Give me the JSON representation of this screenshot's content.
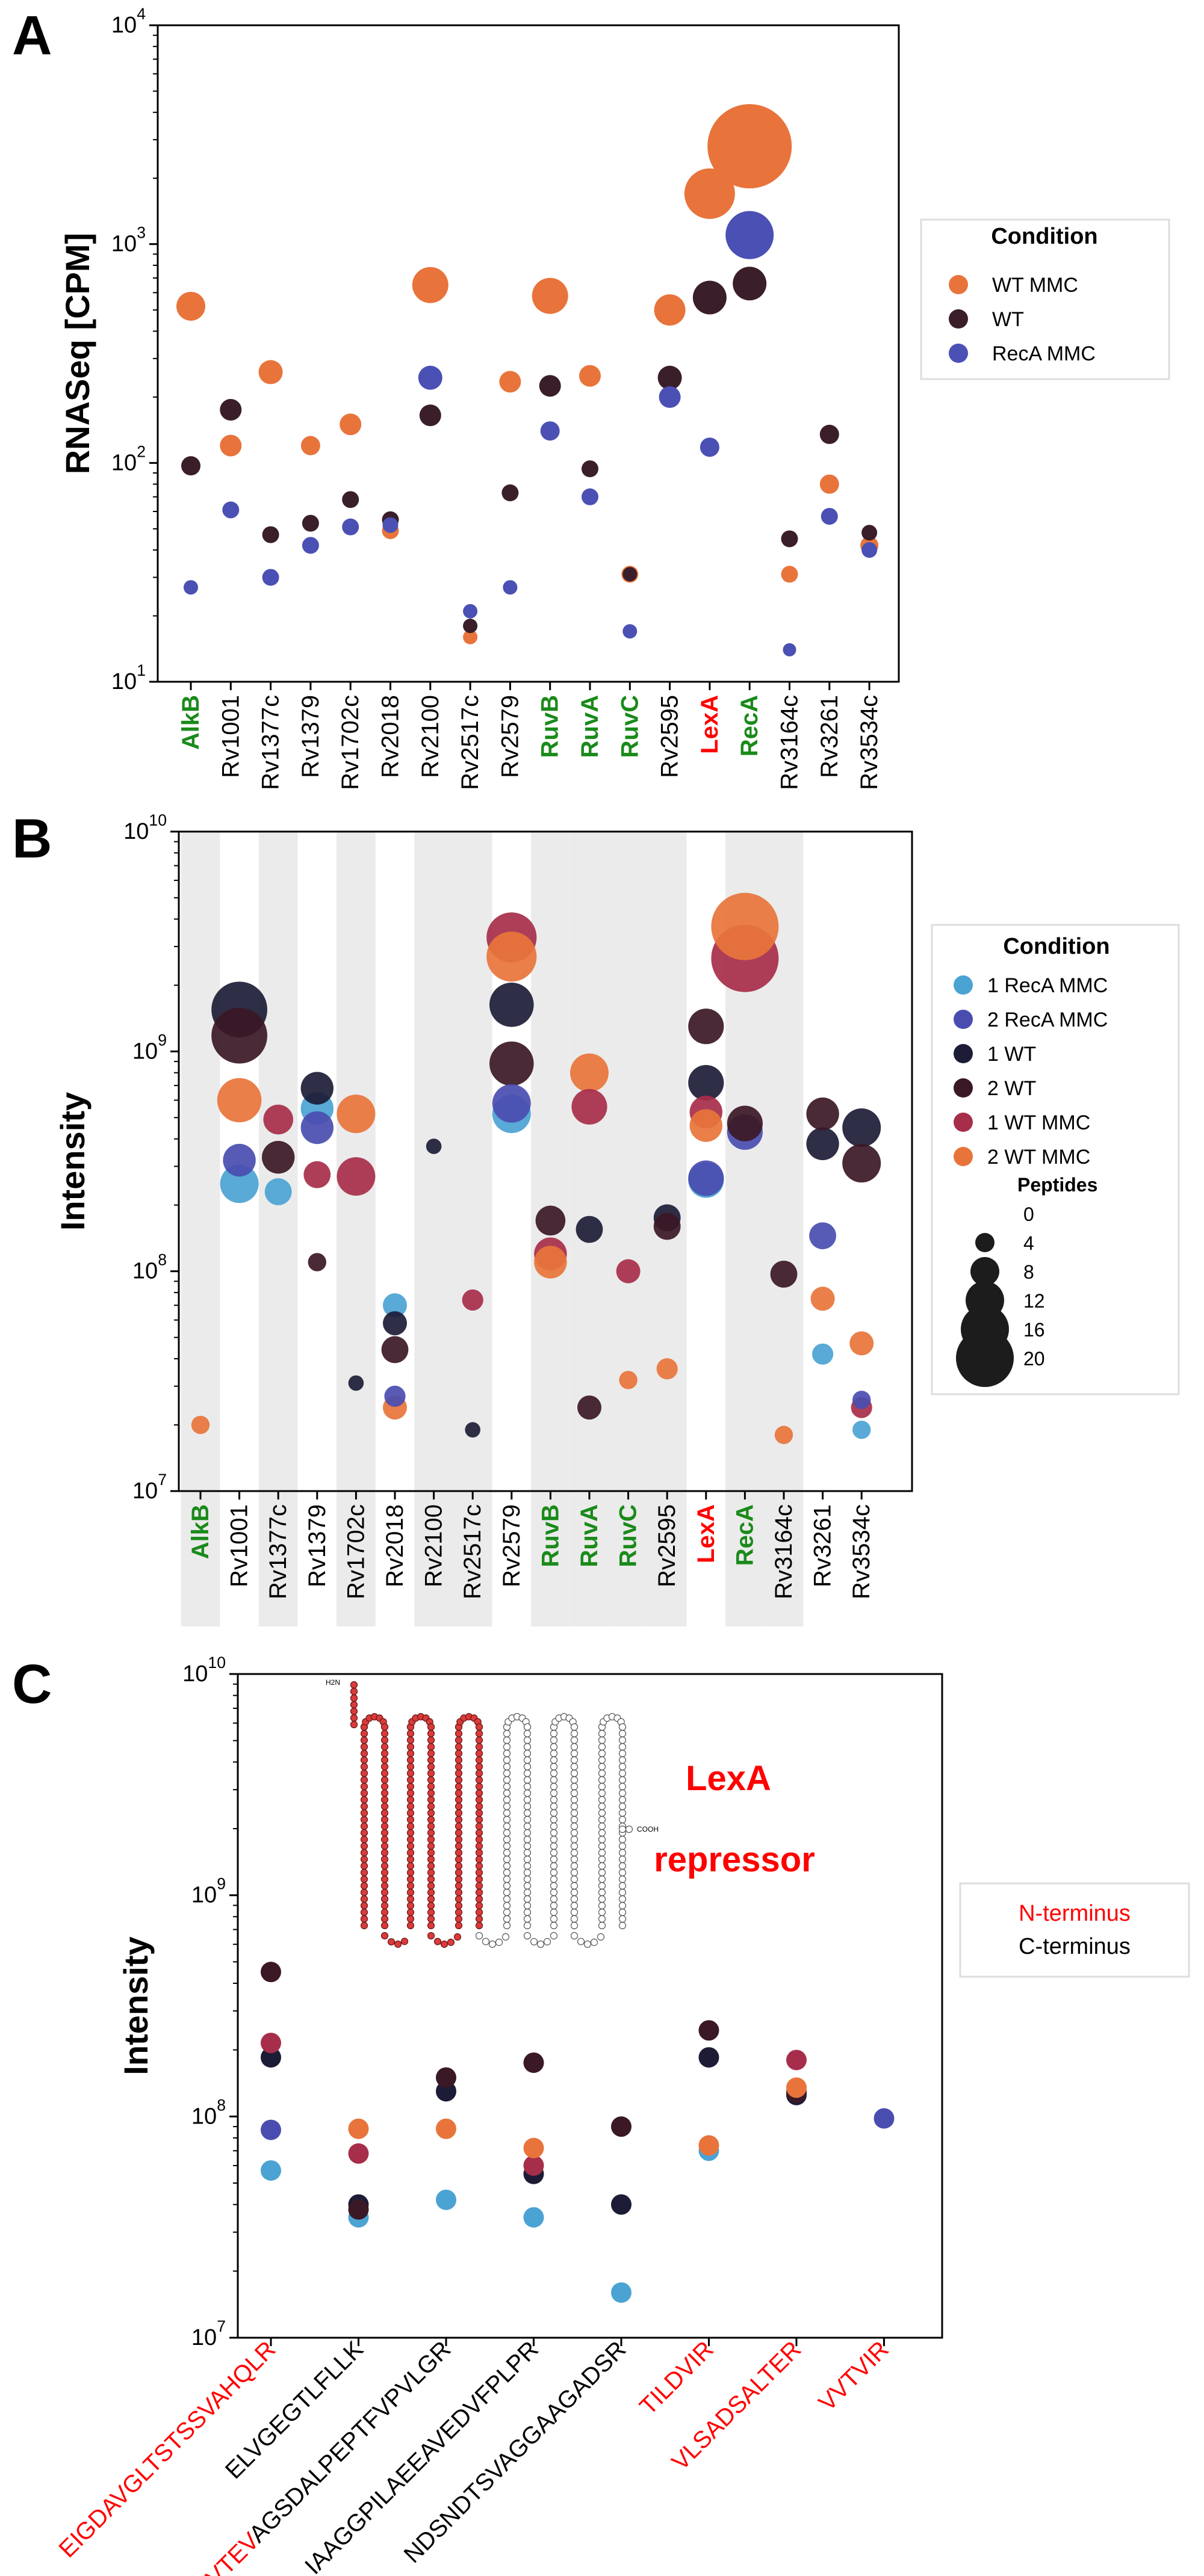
{
  "colors": {
    "wt_mmc": "#E8743B",
    "wt": "#3A1E2A",
    "reca_mmc": "#4B50B4",
    "b_1_reca_mmc": "#4BA3D3",
    "b_2_reca_mmc": "#4A4DB0",
    "b_1_wt": "#1C1C36",
    "b_2_wt": "#3B1825",
    "b_1_wt_mmc": "#A72E4A",
    "b_2_wt_mmc": "#E8743B",
    "green_label": "#1A8A1A",
    "red_label": "#FF0000",
    "shade": "#EBEBEB"
  },
  "chart_data": [
    {
      "panel": "A",
      "type": "scatter",
      "ylabel": "RNASeq [CPM]",
      "yscale": "log",
      "ylim": [
        10,
        10000
      ],
      "yticks": [
        "10^1",
        "10^2",
        "10^3",
        "10^4"
      ],
      "categories": [
        "AlkB",
        "Rv1001",
        "Rv1377c",
        "Rv1379",
        "Rv1702c",
        "Rv2018",
        "Rv2100",
        "Rv2517c",
        "Rv2579",
        "RuvB",
        "RuvA",
        "RuvC",
        "Rv2595",
        "LexA",
        "RecA",
        "Rv3164c",
        "Rv3261",
        "Rv3534c"
      ],
      "category_colors": [
        "green",
        "black",
        "black",
        "black",
        "black",
        "black",
        "black",
        "black",
        "black",
        "green",
        "green",
        "green",
        "black",
        "red",
        "green",
        "black",
        "black",
        "black"
      ],
      "legend_title": "Condition",
      "series": [
        {
          "name": "WT MMC",
          "color_key": "wt_mmc",
          "values": [
            520,
            120,
            260,
            120,
            150,
            49,
            650,
            16,
            235,
            580,
            250,
            31,
            500,
            1700,
            2800,
            31,
            80,
            42
          ],
          "sizes": [
            24,
            18,
            20,
            16,
            18,
            14,
            30,
            12,
            18,
            30,
            18,
            14,
            26,
            42,
            70,
            14,
            16,
            15
          ]
        },
        {
          "name": "WT",
          "color_key": "wt",
          "values": [
            97,
            175,
            47,
            53,
            68,
            55,
            165,
            18,
            73,
            225,
            94,
            31,
            245,
            570,
            660,
            45,
            135,
            48
          ],
          "sizes": [
            16,
            18,
            14,
            14,
            14,
            14,
            18,
            12,
            14,
            18,
            14,
            12,
            20,
            28,
            28,
            14,
            16,
            13
          ]
        },
        {
          "name": "RecA  MMC",
          "color_key": "reca_mmc",
          "values": [
            27,
            61,
            30,
            42,
            51,
            52,
            245,
            21,
            27,
            140,
            70,
            17,
            200,
            118,
            1100,
            14,
            57,
            40
          ],
          "sizes": [
            12,
            14,
            14,
            14,
            14,
            13,
            20,
            12,
            12,
            16,
            14,
            12,
            18,
            16,
            40,
            11,
            14,
            13
          ]
        }
      ]
    },
    {
      "panel": "B",
      "type": "scatter",
      "ylabel": "Intensity",
      "yscale": "log",
      "ylim": [
        10000000,
        10000000000
      ],
      "yticks": [
        "10^7",
        "10^8",
        "10^9",
        "10^10"
      ],
      "categories": [
        "AlkB",
        "Rv1001",
        "Rv1377c",
        "Rv1379",
        "Rv1702c",
        "Rv2018",
        "Rv2100",
        "Rv2517c",
        "Rv2579",
        "RuvB",
        "RuvA",
        "RuvC",
        "Rv2595",
        "LexA",
        "RecA",
        "Rv3164c",
        "Rv3261",
        "Rv3534c"
      ],
      "category_colors": [
        "green",
        "black",
        "black",
        "black",
        "black",
        "black",
        "black",
        "black",
        "black",
        "green",
        "green",
        "green",
        "black",
        "red",
        "green",
        "black",
        "black",
        "black"
      ],
      "shaded": [
        true,
        false,
        true,
        false,
        true,
        false,
        true,
        true,
        false,
        true,
        true,
        true,
        true,
        false,
        true,
        true,
        false,
        false
      ],
      "legend_title": "Condition",
      "size_title": "Peptides",
      "size_ticks": [
        0,
        4,
        8,
        12,
        16,
        20
      ],
      "series": [
        {
          "name": "1 RecA MMC",
          "color_key": "b_1_reca_mmc",
          "values": [
            null,
            250000000,
            230000000,
            550000000,
            null,
            70000000,
            null,
            null,
            520000000,
            null,
            null,
            null,
            null,
            260000000,
            null,
            null,
            42000000,
            19000000
          ],
          "sizes": [
            0,
            10,
            6,
            8,
            0,
            5,
            0,
            0,
            10,
            0,
            0,
            0,
            0,
            9,
            0,
            0,
            4,
            3
          ]
        },
        {
          "name": "2 RecA MMC",
          "color_key": "b_2_reca_mmc",
          "values": [
            null,
            320000000,
            null,
            450000000,
            null,
            27000000,
            null,
            null,
            580000000,
            null,
            null,
            null,
            null,
            265000000,
            430000000,
            null,
            145000000,
            26000000
          ],
          "sizes": [
            0,
            8,
            0,
            8,
            0,
            4,
            0,
            0,
            10,
            0,
            0,
            0,
            0,
            9,
            9,
            0,
            6,
            3
          ]
        },
        {
          "name": "1 WT",
          "color_key": "b_1_wt",
          "values": [
            null,
            1550000000,
            null,
            680000000,
            31000000,
            58000000,
            370000000,
            19000000,
            1630000000,
            null,
            155000000,
            null,
            175000000,
            720000000,
            null,
            null,
            380000000,
            450000000
          ],
          "sizes": [
            0,
            16,
            0,
            8,
            2,
            5,
            2,
            2,
            12,
            0,
            6,
            0,
            6,
            9,
            0,
            0,
            8,
            10
          ]
        },
        {
          "name": "2 WT",
          "color_key": "b_2_wt",
          "values": [
            null,
            1180000000,
            330000000,
            110000000,
            null,
            44000000,
            null,
            null,
            880000000,
            170000000,
            24000000,
            null,
            160000000,
            1300000000,
            470000000,
            97000000,
            520000000,
            310000000
          ],
          "sizes": [
            0,
            16,
            8,
            3,
            0,
            6,
            0,
            0,
            12,
            7,
            5,
            0,
            6,
            9,
            9,
            6,
            8,
            10
          ]
        },
        {
          "name": "1 WT MMC",
          "color_key": "b_1_wt_mmc",
          "values": [
            null,
            null,
            490000000,
            275000000,
            270000000,
            null,
            null,
            74000000,
            3300000000,
            120000000,
            560000000,
            100000000,
            null,
            530000000,
            2650000000,
            null,
            null,
            24000000
          ],
          "sizes": [
            0,
            0,
            7,
            6,
            10,
            0,
            0,
            4,
            14,
            8,
            9,
            5,
            0,
            8,
            20,
            0,
            0,
            4
          ]
        },
        {
          "name": "2 WT MMC",
          "color_key": "b_2_wt_mmc",
          "values": [
            20000000,
            600000000,
            null,
            null,
            520000000,
            24000000,
            null,
            null,
            2700000000,
            110000000,
            800000000,
            32000000,
            36000000,
            460000000,
            3700000000,
            18000000,
            75000000,
            47000000
          ],
          "sizes": [
            3,
            12,
            0,
            0,
            10,
            5,
            0,
            0,
            14,
            8,
            10,
            3,
            4,
            8,
            20,
            3,
            5,
            5
          ]
        }
      ]
    },
    {
      "panel": "C",
      "type": "scatter",
      "ylabel": "Intensity",
      "yscale": "log",
      "ylim": [
        10000000,
        10000000000
      ],
      "yticks": [
        "10^7",
        "10^8",
        "10^9",
        "10^10"
      ],
      "categories": [
        "EIGDAVGLTSTSSVAHQLR",
        "ELVGEGTLFLLK",
        "GADDAALPPVTEVAGSDALPEPTFVPVLGR",
        "IAAGGPILAEEAVEDVFPLPR",
        "NDSNDTSVAGGAAGADSR",
        "TILDVIR",
        "VLSADSALTER",
        "VVTVIR"
      ],
      "category_label_parts": [
        [
          {
            "text": "EIGDAVGLTSTSSVAHQLR",
            "color": "red"
          }
        ],
        [
          {
            "text": "ELVGEGTLFLLK",
            "color": "black"
          }
        ],
        [
          {
            "text": "GADDAALPPVTEV",
            "color": "red"
          },
          {
            "text": "AGSDALPEPTFVPVLGR",
            "color": "black"
          }
        ],
        [
          {
            "text": "IAAGGPILAEEAVEDVFPLPR",
            "color": "black"
          }
        ],
        [
          {
            "text": "NDSNDTSVAGGAAGADSR",
            "color": "black"
          }
        ],
        [
          {
            "text": "TILDVIR",
            "color": "red"
          }
        ],
        [
          {
            "text": "VLSADSALTER",
            "color": "red"
          }
        ],
        [
          {
            "text": "VVTVIR",
            "color": "red"
          }
        ]
      ],
      "series": [
        {
          "name": "1 RecA MMC",
          "color_key": "b_1_reca_mmc",
          "values": [
            57000000,
            35000000,
            42000000,
            35000000,
            16000000,
            70000000,
            130000000,
            null
          ]
        },
        {
          "name": "2 RecA MMC",
          "color_key": "b_2_reca_mmc",
          "values": [
            87000000,
            null,
            null,
            null,
            null,
            null,
            null,
            98000000
          ]
        },
        {
          "name": "1 WT",
          "color_key": "b_1_wt",
          "values": [
            185000000,
            40000000,
            130000000,
            55000000,
            40000000,
            185000000,
            125000000,
            null
          ]
        },
        {
          "name": "2 WT",
          "color_key": "b_2_wt",
          "values": [
            450000000,
            38000000,
            150000000,
            175000000,
            90000000,
            245000000,
            128000000,
            null
          ]
        },
        {
          "name": "1 WT MMC",
          "color_key": "b_1_wt_mmc",
          "values": [
            215000000,
            68000000,
            null,
            60000000,
            null,
            null,
            180000000,
            null
          ]
        },
        {
          "name": "2 WT MMC",
          "color_key": "b_2_wt_mmc",
          "values": [
            null,
            88000000,
            88000000,
            72000000,
            null,
            74000000,
            135000000,
            null
          ]
        }
      ],
      "inset_title_line1": "LexA",
      "inset_title_line2": "repressor",
      "inset_end_labels": [
        "H2N",
        "COOH"
      ],
      "legend_entries": [
        {
          "text": "N-terminus",
          "color": "red"
        },
        {
          "text": "C-terminus",
          "color": "black"
        }
      ]
    }
  ],
  "panel_letters": [
    "A",
    "B",
    "C"
  ]
}
